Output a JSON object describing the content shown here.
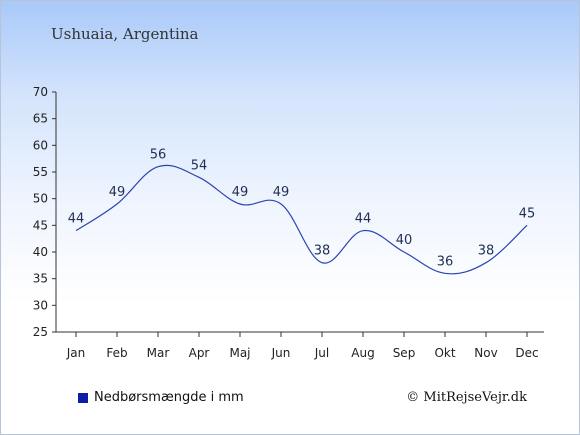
{
  "chart_data": {
    "type": "line",
    "title": "Ushuaia, Argentina",
    "categories": [
      "Jan",
      "Feb",
      "Mar",
      "Apr",
      "Maj",
      "Jun",
      "Jul",
      "Aug",
      "Sep",
      "Okt",
      "Nov",
      "Dec"
    ],
    "series": [
      {
        "name": "Nedbørsmængde i mm",
        "values": [
          44,
          49,
          56,
          54,
          49,
          49,
          38,
          44,
          40,
          36,
          38,
          45
        ]
      }
    ],
    "ylim": [
      25,
      70
    ],
    "yticks": [
      25,
      30,
      35,
      40,
      45,
      50,
      55,
      60,
      65,
      70
    ],
    "grid": false,
    "legend_position": "bottom-left",
    "line_color": "#2b44b0"
  },
  "legend": {
    "label": "Nedbørsmængde i mm",
    "color": "#0a1fa8"
  },
  "credit": "© MitRejseVejr.dk"
}
